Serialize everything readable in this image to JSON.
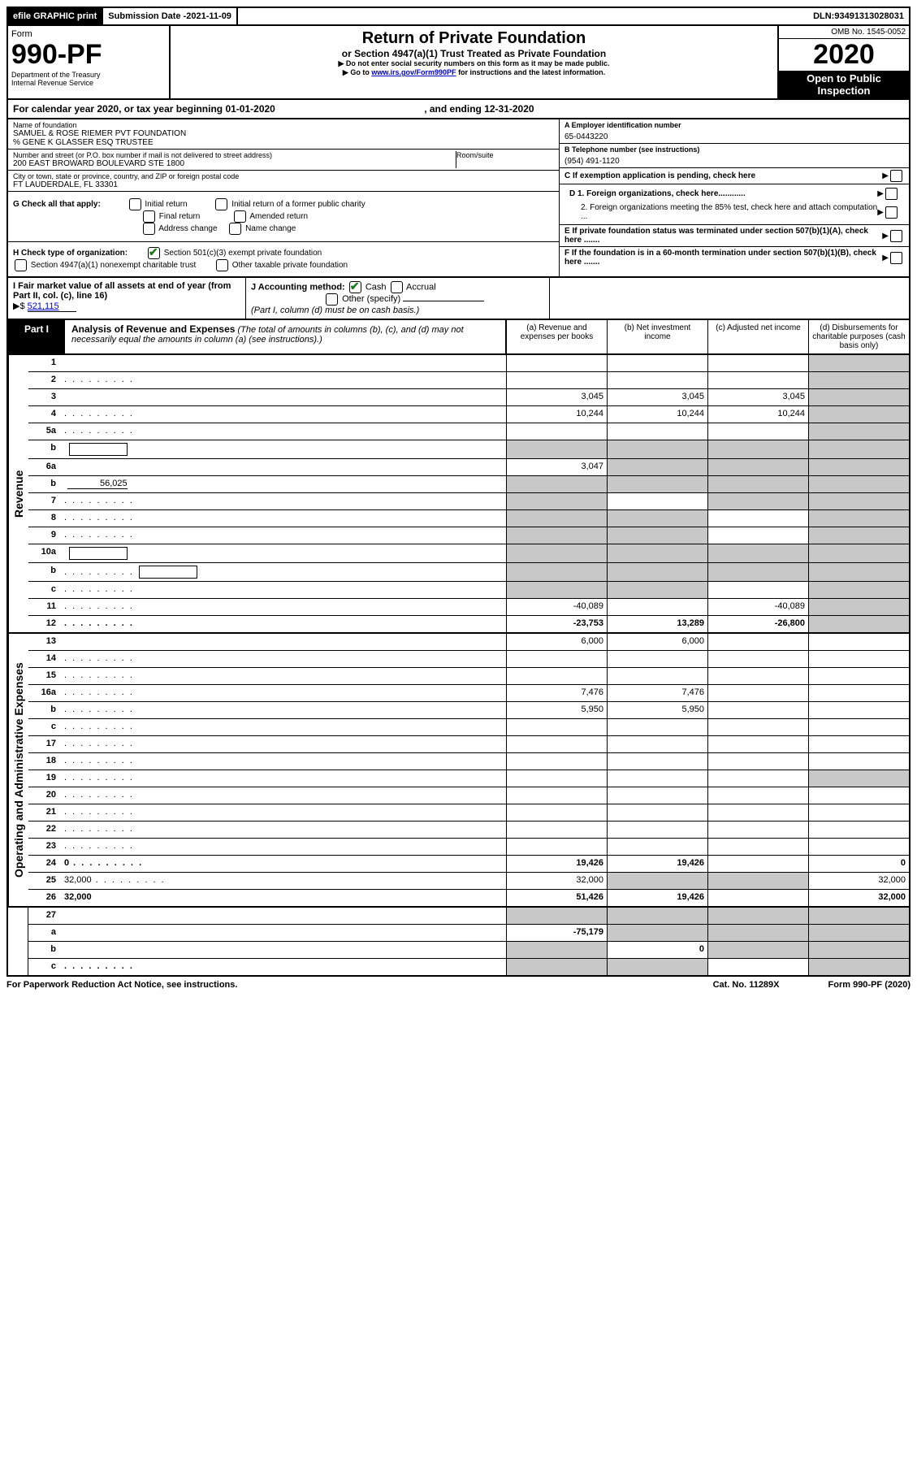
{
  "topbar": {
    "efile": "efile GRAPHIC print",
    "subdate_label": "Submission Date - ",
    "subdate": "2021-11-09",
    "dln_label": "DLN: ",
    "dln": "93491313028031"
  },
  "header": {
    "form_label": "Form",
    "form_no": "990-PF",
    "dept": "Department of the Treasury",
    "irs": "Internal Revenue Service",
    "title": "Return of Private Foundation",
    "subtitle": "or Section 4947(a)(1) Trust Treated as Private Foundation",
    "note1": "▶ Do not enter social security numbers on this form as it may be made public.",
    "note2_pre": "▶ Go to ",
    "note2_link": "www.irs.gov/Form990PF",
    "note2_post": " for instructions and the latest information.",
    "omb": "OMB No. 1545-0052",
    "year": "2020",
    "open": "Open to Public Inspection"
  },
  "calyear": {
    "pre": "For calendar year 2020, or tax year beginning ",
    "begin": "01-01-2020",
    "mid": " , and ending ",
    "end": "12-31-2020"
  },
  "info_left": {
    "name_label": "Name of foundation",
    "name1": "SAMUEL & ROSE RIEMER PVT FOUNDATION",
    "name2": "% GENE K GLASSER ESQ TRUSTEE",
    "addr_label": "Number and street (or P.O. box number if mail is not delivered to street address)",
    "addr": "200 EAST BROWARD BOULEVARD STE 1800",
    "room_label": "Room/suite",
    "city_label": "City or town, state or province, country, and ZIP or foreign postal code",
    "city": "FT LAUDERDALE, FL  33301"
  },
  "info_right": {
    "a_label": "A Employer identification number",
    "a_val": "65-0443220",
    "b_label": "B Telephone number (see instructions)",
    "b_val": "(954) 491-1120",
    "c_label": "C If exemption application is pending, check here",
    "d1": "D 1. Foreign organizations, check here............",
    "d2": "2. Foreign organizations meeting the 85% test, check here and attach computation ...",
    "e": "E  If private foundation status was terminated under section 507(b)(1)(A), check here .......",
    "f": "F  If the foundation is in a 60-month termination under section 507(b)(1)(B), check here .......",
    "arrow": "▶"
  },
  "g": {
    "label": "G Check all that apply:",
    "opts": [
      "Initial return",
      "Final return",
      "Address change",
      "Initial return of a former public charity",
      "Amended return",
      "Name change"
    ]
  },
  "h": {
    "label": "H Check type of organization:",
    "opt1": "Section 501(c)(3) exempt private foundation",
    "opt2": "Section 4947(a)(1) nonexempt charitable trust",
    "opt3": "Other taxable private foundation"
  },
  "i": {
    "label": "I Fair market value of all assets at end of year (from Part II, col. (c), line 16)",
    "arrow": "▶$",
    "val": "521,115"
  },
  "j": {
    "label": "J Accounting method:",
    "cash": "Cash",
    "accrual": "Accrual",
    "other": "Other (specify)",
    "note": "(Part I, column (d) must be on cash basis.)"
  },
  "part1": {
    "label": "Part I",
    "title": "Analysis of Revenue and Expenses",
    "note": " (The total of amounts in columns (b), (c), and (d) may not necessarily equal the amounts in column (a) (see instructions).)",
    "cols": {
      "a": "(a) Revenue and expenses per books",
      "b": "(b) Net investment income",
      "c": "(c) Adjusted net income",
      "d": "(d) Disbursements for charitable purposes (cash basis only)"
    }
  },
  "sections": {
    "revenue": "Revenue",
    "expenses": "Operating and Administrative Expenses"
  },
  "rows_revenue": [
    {
      "n": "1",
      "d": "",
      "a": "",
      "b": "",
      "c": "",
      "dg": true
    },
    {
      "n": "2",
      "d": "",
      "dots": true,
      "a": "",
      "b": "",
      "c": "",
      "dg": true,
      "checked": true
    },
    {
      "n": "3",
      "d": "",
      "a": "3,045",
      "b": "3,045",
      "c": "3,045",
      "dg": true
    },
    {
      "n": "4",
      "d": "",
      "dots": true,
      "a": "10,244",
      "b": "10,244",
      "c": "10,244",
      "dg": true
    },
    {
      "n": "5a",
      "d": "",
      "dots": true,
      "a": "",
      "b": "",
      "c": "",
      "dg": true
    },
    {
      "n": "b",
      "d": "",
      "inline": true,
      "a": "",
      "b": "",
      "c": "",
      "dg": true,
      "bg": true,
      "cg": true,
      "ag": true
    },
    {
      "n": "6a",
      "d": "",
      "a": "3,047",
      "b": "",
      "c": "",
      "dg": true,
      "bg": true,
      "cg": true
    },
    {
      "n": "b",
      "d": "",
      "inline_val": "56,025",
      "a": "",
      "b": "",
      "c": "",
      "dg": true,
      "bg": true,
      "cg": true,
      "ag": true
    },
    {
      "n": "7",
      "d": "",
      "dots": true,
      "a": "",
      "b": "",
      "c": "",
      "dg": true,
      "ag": true,
      "cg": true
    },
    {
      "n": "8",
      "d": "",
      "dots": true,
      "a": "",
      "b": "",
      "c": "",
      "dg": true,
      "ag": true,
      "bg": true
    },
    {
      "n": "9",
      "d": "",
      "dots": true,
      "a": "",
      "b": "",
      "c": "",
      "dg": true,
      "ag": true,
      "bg": true
    },
    {
      "n": "10a",
      "d": "",
      "inline": true,
      "a": "",
      "b": "",
      "c": "",
      "dg": true,
      "ag": true,
      "bg": true,
      "cg": true
    },
    {
      "n": "b",
      "d": "",
      "dots": true,
      "inline": true,
      "a": "",
      "b": "",
      "c": "",
      "dg": true,
      "ag": true,
      "bg": true,
      "cg": true
    },
    {
      "n": "c",
      "d": "",
      "dots": true,
      "a": "",
      "b": "",
      "c": "",
      "dg": true,
      "ag": true,
      "bg": true
    },
    {
      "n": "11",
      "d": "",
      "dots": true,
      "a": "-40,089",
      "b": "",
      "c": "-40,089",
      "dg": true
    },
    {
      "n": "12",
      "d": "",
      "dots": true,
      "bold": true,
      "a": "-23,753",
      "b": "13,289",
      "c": "-26,800",
      "dg": true
    }
  ],
  "rows_expenses": [
    {
      "n": "13",
      "d": "",
      "a": "6,000",
      "b": "6,000",
      "c": ""
    },
    {
      "n": "14",
      "d": "",
      "dots": true,
      "a": "",
      "b": "",
      "c": ""
    },
    {
      "n": "15",
      "d": "",
      "dots": true,
      "a": "",
      "b": "",
      "c": ""
    },
    {
      "n": "16a",
      "d": "",
      "dots": true,
      "a": "7,476",
      "b": "7,476",
      "c": ""
    },
    {
      "n": "b",
      "d": "",
      "dots": true,
      "a": "5,950",
      "b": "5,950",
      "c": ""
    },
    {
      "n": "c",
      "d": "",
      "dots": true,
      "a": "",
      "b": "",
      "c": ""
    },
    {
      "n": "17",
      "d": "",
      "dots": true,
      "a": "",
      "b": "",
      "c": ""
    },
    {
      "n": "18",
      "d": "",
      "dots": true,
      "a": "",
      "b": "",
      "c": ""
    },
    {
      "n": "19",
      "d": "",
      "dots": true,
      "a": "",
      "b": "",
      "c": "",
      "dg": true
    },
    {
      "n": "20",
      "d": "",
      "dots": true,
      "a": "",
      "b": "",
      "c": ""
    },
    {
      "n": "21",
      "d": "",
      "dots": true,
      "a": "",
      "b": "",
      "c": ""
    },
    {
      "n": "22",
      "d": "",
      "dots": true,
      "a": "",
      "b": "",
      "c": ""
    },
    {
      "n": "23",
      "d": "",
      "dots": true,
      "a": "",
      "b": "",
      "c": ""
    },
    {
      "n": "24",
      "d": "0",
      "dots": true,
      "bold": true,
      "a": "19,426",
      "b": "19,426",
      "c": ""
    },
    {
      "n": "25",
      "d": "32,000",
      "dots": true,
      "a": "32,000",
      "b": "",
      "c": "",
      "bg": true,
      "cg": true
    },
    {
      "n": "26",
      "d": "32,000",
      "bold": true,
      "a": "51,426",
      "b": "19,426",
      "c": ""
    }
  ],
  "rows_bottom": [
    {
      "n": "27",
      "d": "",
      "a": "",
      "b": "",
      "c": "",
      "ag": true,
      "bg": true,
      "cg": true,
      "dg": true
    },
    {
      "n": "a",
      "d": "",
      "bold": true,
      "a": "-75,179",
      "b": "",
      "c": "",
      "bg": true,
      "cg": true,
      "dg": true
    },
    {
      "n": "b",
      "d": "",
      "bold": true,
      "a": "",
      "b": "0",
      "c": "",
      "ag": true,
      "cg": true,
      "dg": true
    },
    {
      "n": "c",
      "d": "",
      "bold": true,
      "dots": true,
      "a": "",
      "b": "",
      "c": "",
      "ag": true,
      "bg": true,
      "dg": true
    }
  ],
  "footer": {
    "left": "For Paperwork Reduction Act Notice, see instructions.",
    "mid": "Cat. No. 11289X",
    "right": "Form 990-PF (2020)"
  }
}
